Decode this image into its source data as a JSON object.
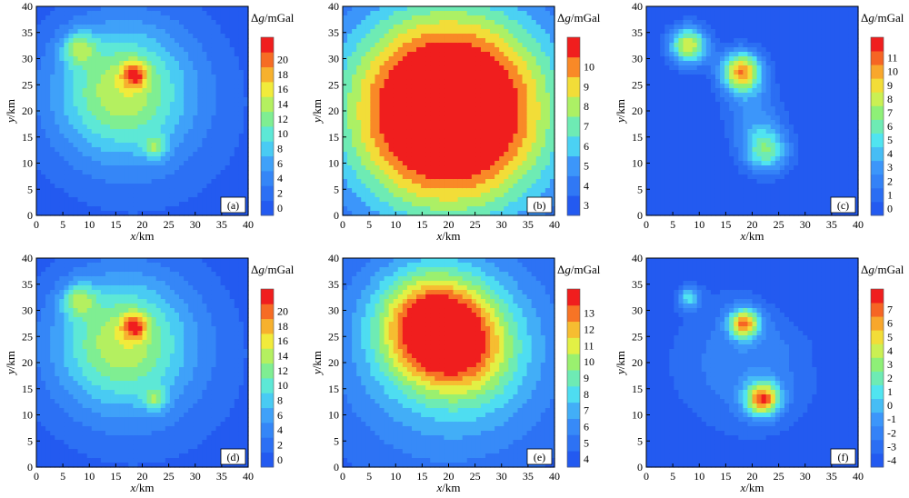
{
  "chart_data": [
    {
      "type": "heatmap",
      "panel_label": "(a)",
      "xlabel": "x/km",
      "ylabel": "y/km",
      "xlim": [
        0,
        40
      ],
      "ylim": [
        0,
        40
      ],
      "xticks": [
        "0",
        "5",
        "10",
        "15",
        "20",
        "25",
        "30",
        "35",
        "40"
      ],
      "yticks": [
        "0",
        "5",
        "10",
        "15",
        "20",
        "25",
        "30",
        "35",
        "40"
      ],
      "colorbar": {
        "title": "Δg/mGal",
        "min": 0,
        "max": 21,
        "ticks": [
          "0",
          "2",
          "4",
          "6",
          "8",
          "10",
          "12",
          "14",
          "16",
          "18",
          "20"
        ]
      },
      "sources": [
        {
          "x": 8,
          "y": 32,
          "amplitude": 7,
          "width": 2.2
        },
        {
          "x": 18.5,
          "y": 27,
          "amplitude": 9,
          "width": 1.6
        },
        {
          "x": 22.5,
          "y": 13,
          "amplitude": 6,
          "width": 1.6
        },
        {
          "x": 16,
          "y": 24,
          "amplitude": 11,
          "width": 9
        },
        {
          "x": 20,
          "y": 20,
          "amplitude": 3,
          "width": 16
        }
      ]
    },
    {
      "type": "heatmap",
      "panel_label": "(b)",
      "xlabel": "x/km",
      "ylabel": "y/km",
      "xlim": [
        0,
        40
      ],
      "ylim": [
        0,
        40
      ],
      "xticks": [
        "0",
        "5",
        "10",
        "15",
        "20",
        "25",
        "30",
        "35",
        "40"
      ],
      "yticks": [
        "0",
        "5",
        "10",
        "15",
        "20",
        "25",
        "30",
        "35",
        "40"
      ],
      "colorbar": {
        "title": "Δg/mGal",
        "min": 3,
        "max": 10.5,
        "ticks": [
          "3",
          "4",
          "5",
          "6",
          "7",
          "8",
          "9",
          "10"
        ]
      },
      "sources": [
        {
          "x": 20,
          "y": 20,
          "amplitude": 10.5,
          "width": 14
        }
      ]
    },
    {
      "type": "heatmap",
      "panel_label": "(c)",
      "xlabel": "x/km",
      "ylabel": "y/km",
      "xlim": [
        0,
        40
      ],
      "ylim": [
        0,
        40
      ],
      "xticks": [
        "0",
        "5",
        "10",
        "15",
        "20",
        "25",
        "30",
        "35",
        "40"
      ],
      "yticks": [
        "0",
        "5",
        "10",
        "15",
        "20",
        "25",
        "30",
        "35",
        "40"
      ],
      "colorbar": {
        "title": "Δg/mGal",
        "min": 0,
        "max": 11.5,
        "ticks": [
          "0",
          "1",
          "2",
          "3",
          "4",
          "5",
          "6",
          "7",
          "8",
          "9",
          "10",
          "11"
        ]
      },
      "sources": [
        {
          "x": 8,
          "y": 32.5,
          "amplitude": 8,
          "width": 2.6
        },
        {
          "x": 18,
          "y": 27.5,
          "amplitude": 9.5,
          "width": 2.8
        },
        {
          "x": 22.5,
          "y": 12.5,
          "amplitude": 6,
          "width": 3.2
        },
        {
          "x": 20,
          "y": 20,
          "amplitude": 2.5,
          "width": 4
        }
      ]
    },
    {
      "type": "heatmap",
      "panel_label": "(d)",
      "xlabel": "x/km",
      "ylabel": "y/km",
      "xlim": [
        0,
        40
      ],
      "ylim": [
        0,
        40
      ],
      "xticks": [
        "0",
        "5",
        "10",
        "15",
        "20",
        "25",
        "30",
        "35",
        "40"
      ],
      "yticks": [
        "0",
        "5",
        "10",
        "15",
        "20",
        "25",
        "30",
        "35",
        "40"
      ],
      "colorbar": {
        "title": "Δg/mGal",
        "min": 0,
        "max": 21,
        "ticks": [
          "0",
          "2",
          "4",
          "6",
          "8",
          "10",
          "12",
          "14",
          "16",
          "18",
          "20"
        ]
      },
      "sources": [
        {
          "x": 8,
          "y": 32,
          "amplitude": 7,
          "width": 2.2
        },
        {
          "x": 18.5,
          "y": 27,
          "amplitude": 9,
          "width": 1.6
        },
        {
          "x": 22.5,
          "y": 13,
          "amplitude": 6,
          "width": 1.6
        },
        {
          "x": 16,
          "y": 24,
          "amplitude": 11,
          "width": 9
        },
        {
          "x": 20,
          "y": 20,
          "amplitude": 3,
          "width": 16
        }
      ]
    },
    {
      "type": "heatmap",
      "panel_label": "(e)",
      "xlabel": "x/km",
      "ylabel": "y/km",
      "xlim": [
        0,
        40
      ],
      "ylim": [
        0,
        40
      ],
      "xticks": [
        "0",
        "5",
        "10",
        "15",
        "20",
        "25",
        "30",
        "35",
        "40"
      ],
      "yticks": [
        "0",
        "5",
        "10",
        "15",
        "20",
        "25",
        "30",
        "35",
        "40"
      ],
      "colorbar": {
        "title": "Δg/mGal",
        "min": 4,
        "max": 13.5,
        "ticks": [
          "4",
          "5",
          "6",
          "7",
          "8",
          "9",
          "10",
          "11",
          "12",
          "13"
        ]
      },
      "sources": [
        {
          "x": 17,
          "y": 27,
          "amplitude": 7,
          "width": 7
        },
        {
          "x": 24,
          "y": 22,
          "amplitude": 3,
          "width": 7
        },
        {
          "x": 20,
          "y": 22,
          "amplitude": 4,
          "width": 16
        }
      ]
    },
    {
      "type": "heatmap",
      "panel_label": "(f)",
      "xlabel": "x/km",
      "ylabel": "y/km",
      "xlim": [
        0,
        40
      ],
      "ylim": [
        0,
        40
      ],
      "xticks": [
        "0",
        "5",
        "10",
        "15",
        "20",
        "25",
        "30",
        "35",
        "40"
      ],
      "yticks": [
        "0",
        "5",
        "10",
        "15",
        "20",
        "25",
        "30",
        "35",
        "40"
      ],
      "colorbar": {
        "title": "Δg/mGal",
        "min": -4,
        "max": 7.5,
        "ticks": [
          "-4",
          "-3",
          "-2",
          "-1",
          "0",
          "1",
          "2",
          "3",
          "4",
          "5",
          "6",
          "7"
        ]
      },
      "sources": [
        {
          "x": 8,
          "y": 32.5,
          "amplitude": 4.5,
          "width": 1.5
        },
        {
          "x": 18.5,
          "y": 27.5,
          "amplitude": 8.5,
          "width": 2
        },
        {
          "x": 22,
          "y": 13,
          "amplitude": 9,
          "width": 2.3
        },
        {
          "x": 19,
          "y": 20,
          "amplitude": 2.5,
          "width": 10
        },
        {
          "x": 0,
          "y": 0,
          "amplitude": -3,
          "width": 5
        },
        {
          "x": 30,
          "y": 38,
          "amplitude": -2,
          "width": 5
        },
        {
          "x": 32,
          "y": 30,
          "amplitude": -2,
          "width": 2.5
        },
        {
          "x": 38,
          "y": 20,
          "amplitude": -2,
          "width": 3
        },
        {
          "x": 0,
          "y": 40,
          "amplitude": -1.5,
          "width": 4
        }
      ]
    }
  ]
}
